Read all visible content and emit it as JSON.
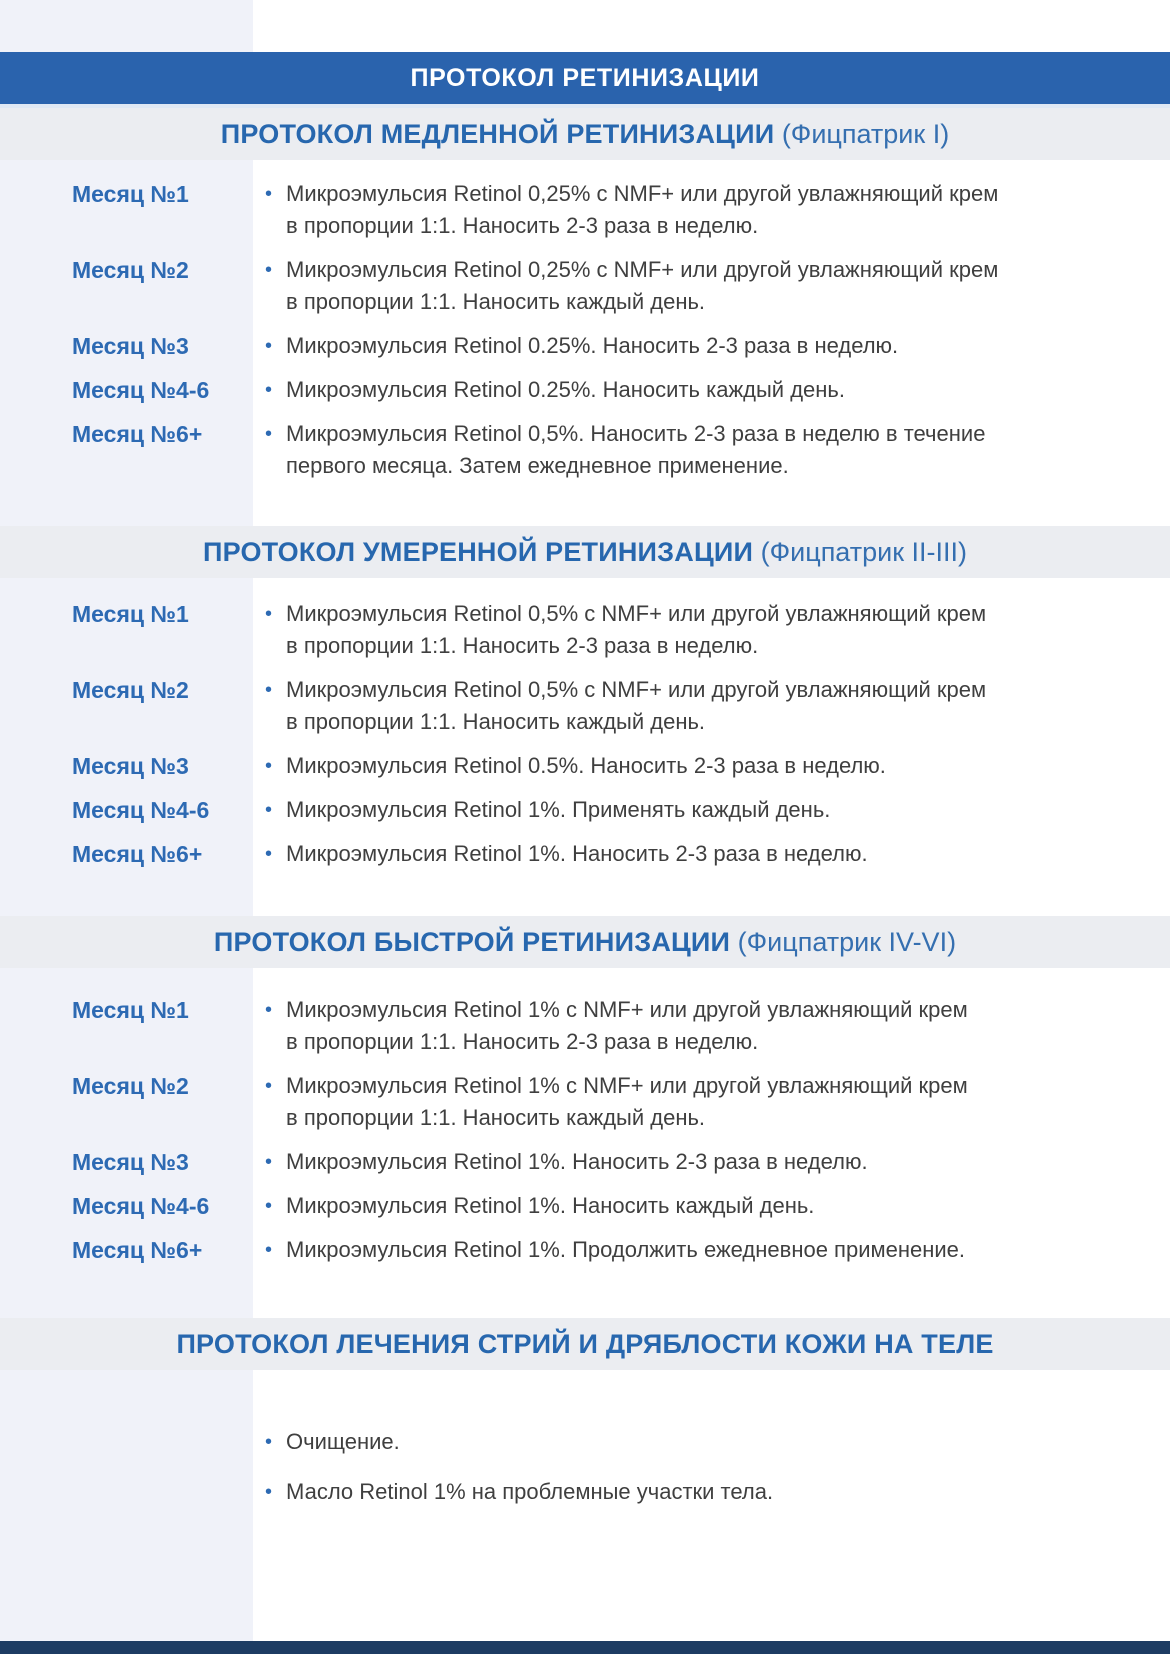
{
  "page": {
    "title": "ПРОТОКОЛ РЕТИНИЗАЦИИ"
  },
  "colors": {
    "title_bar_bg": "#2a63ad",
    "title_bar_text": "#ffffff",
    "section_band_bg": "#ebedf1",
    "section_title_blue": "#2767ae",
    "left_column_bg": "#f0f2f9",
    "month_label_blue": "#2d6ab3",
    "body_text": "#3f3f3f",
    "bullet_dot": "#2d6ab3",
    "footer_bar": "#1d3c63"
  },
  "sections": [
    {
      "title": "ПРОТОКОЛ МЕДЛЕННОЙ РЕТИНИЗАЦИИ",
      "subtitle": " (Фицпатрик I)",
      "rows": [
        {
          "label": "Месяц №1",
          "text": "Микроэмульсия Retinol 0,25% с NMF+ или другой увлажняющий крем\nв пропорции 1:1. Наносить 2-3 раза в неделю."
        },
        {
          "label": "Месяц №2",
          "text": "Микроэмульсия Retinol 0,25% с NMF+ или другой увлажняющий крем\nв пропорции 1:1. Наносить каждый день."
        },
        {
          "label": "Месяц №3",
          "text": "Микроэмульсия Retinol 0.25%. Наносить 2-3 раза в неделю."
        },
        {
          "label": "Месяц №4-6",
          "text": "Микроэмульсия Retinol 0.25%. Наносить каждый день."
        },
        {
          "label": "Месяц №6+",
          "text": "Микроэмульсия Retinol 0,5%. Наносить 2-3 раза в неделю в течение\nпервого месяца. Затем ежедневное применение."
        }
      ]
    },
    {
      "title": "ПРОТОКОЛ УМЕРЕННОЙ РЕТИНИЗАЦИИ",
      "subtitle": " (Фицпатрик II-III)",
      "rows": [
        {
          "label": "Месяц №1",
          "text": "Микроэмульсия Retinol 0,5% с NMF+ или другой увлажняющий крем\nв пропорции 1:1. Наносить 2-3 раза в неделю."
        },
        {
          "label": "Месяц №2",
          "text": "Микроэмульсия Retinol 0,5% с NMF+ или другой увлажняющий крем\nв пропорции 1:1. Наносить каждый день."
        },
        {
          "label": "Месяц №3",
          "text": "Микроэмульсия Retinol 0.5%. Наносить 2-3 раза в неделю."
        },
        {
          "label": "Месяц №4-6",
          "text": "Микроэмульсия Retinol 1%. Применять каждый день."
        },
        {
          "label": "Месяц №6+",
          "text": "Микроэмульсия Retinol 1%. Наносить 2-3 раза в неделю."
        }
      ]
    },
    {
      "title": "ПРОТОКОЛ БЫСТРОЙ РЕТИНИЗАЦИИ",
      "subtitle": " (Фицпатрик IV-VI)",
      "rows": [
        {
          "label": "Месяц №1",
          "text": "Микроэмульсия Retinol 1% с NMF+ или другой увлажняющий крем\nв пропорции 1:1. Наносить 2-3 раза в неделю."
        },
        {
          "label": "Месяц №2",
          "text": "Микроэмульсия Retinol 1% с NMF+ или другой увлажняющий крем\nв пропорции 1:1. Наносить каждый день."
        },
        {
          "label": "Месяц №3",
          "text": "Микроэмульсия Retinol 1%. Наносить 2-3 раза в неделю."
        },
        {
          "label": "Месяц №4-6",
          "text": "Микроэмульсия Retinol 1%. Наносить каждый день."
        },
        {
          "label": "Месяц №6+",
          "text": "Микроэмульсия Retinol 1%. Продолжить ежедневное применение."
        }
      ]
    },
    {
      "title": "ПРОТОКОЛ ЛЕЧЕНИЯ СТРИЙ И ДРЯБЛОСТИ КОЖИ НА ТЕЛЕ",
      "subtitle": "",
      "rows": [
        {
          "text": "Очищение."
        },
        {
          "text": "Масло Retinol 1% на проблемные участки тела."
        }
      ]
    }
  ]
}
